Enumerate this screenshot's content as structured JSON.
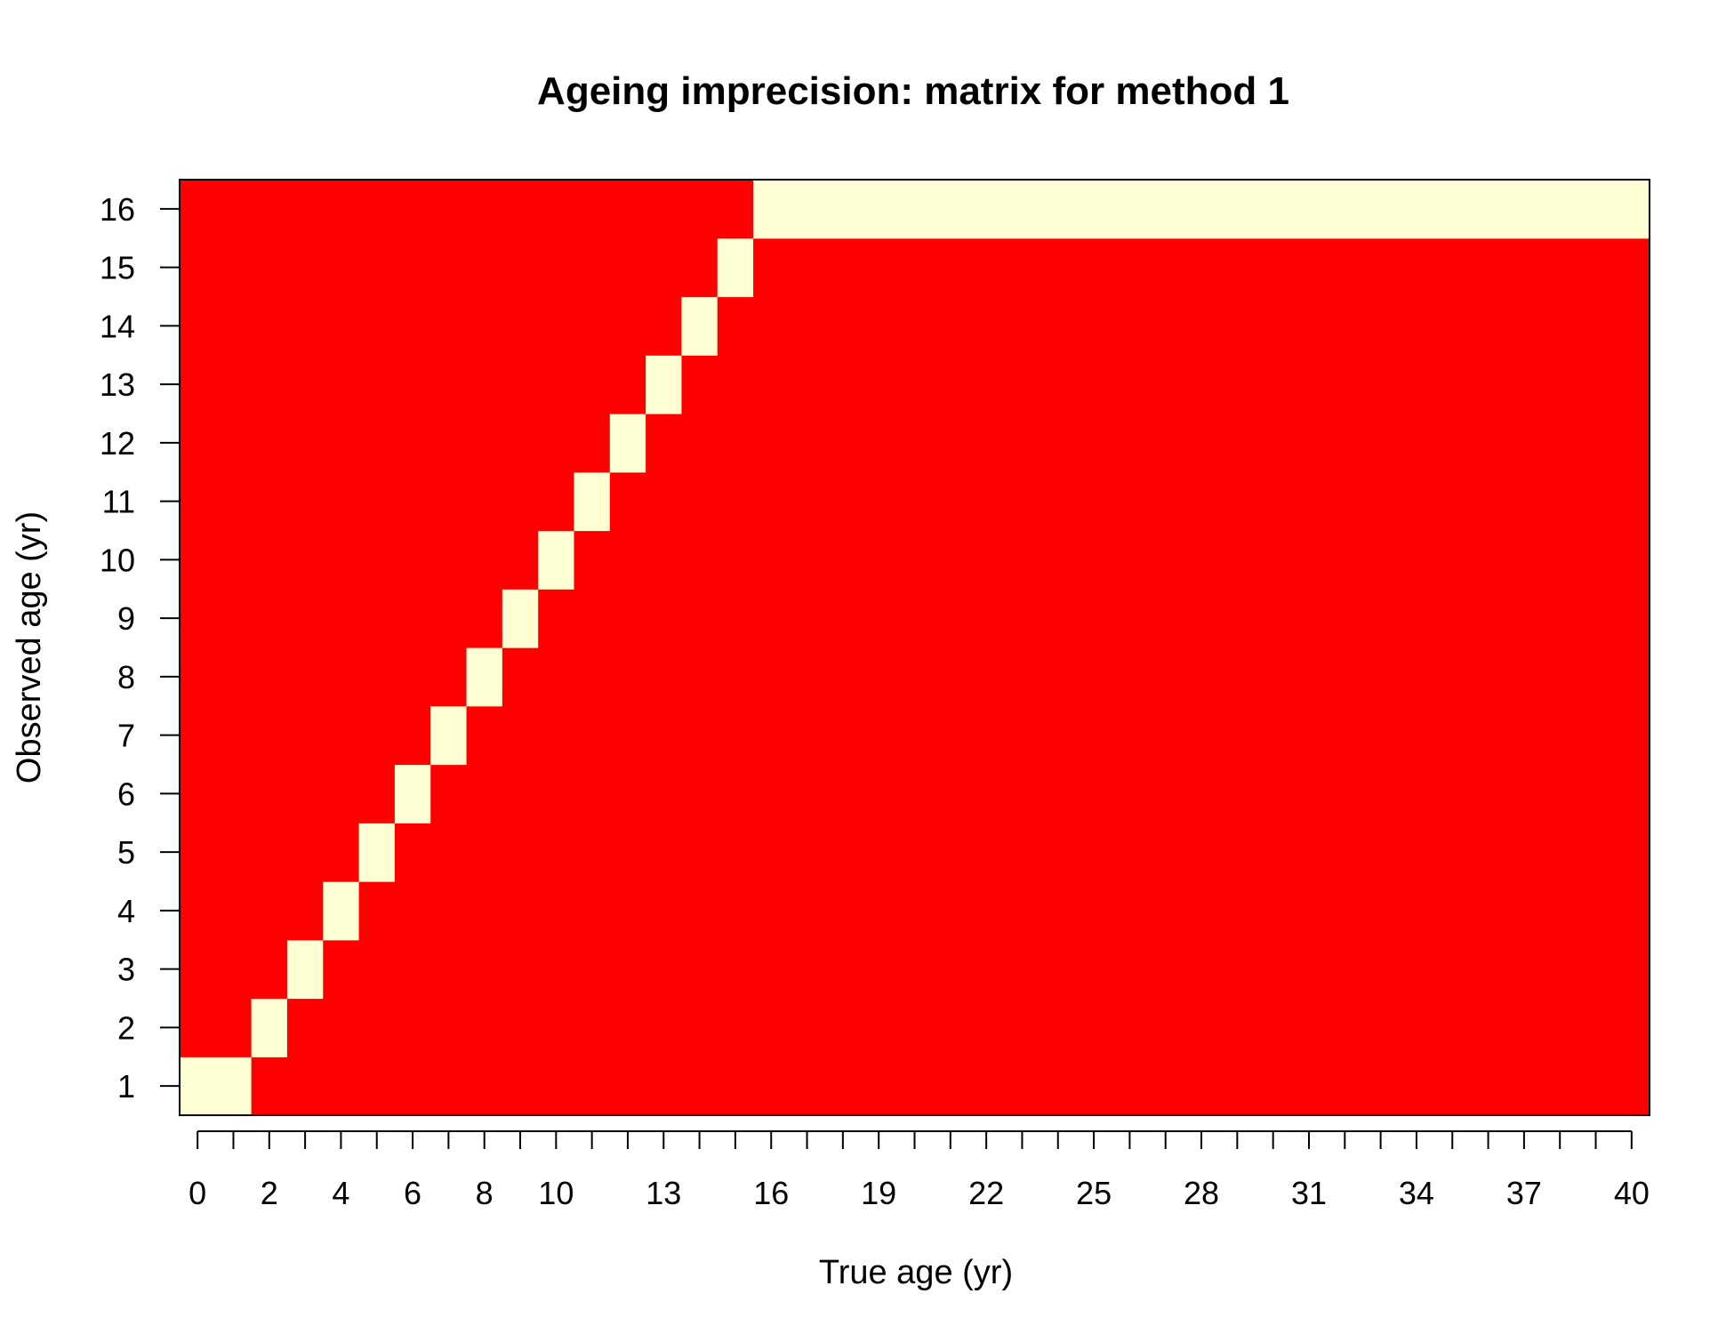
{
  "chart_data": {
    "type": "heatmap",
    "title": "Ageing imprecision: matrix for method 1",
    "xlabel": "True age (yr)",
    "ylabel": "Observed age (yr)",
    "x": [
      0,
      1,
      2,
      3,
      4,
      5,
      6,
      7,
      8,
      9,
      10,
      11,
      12,
      13,
      14,
      15,
      16,
      17,
      18,
      19,
      20,
      21,
      22,
      23,
      24,
      25,
      26,
      27,
      28,
      29,
      30,
      31,
      32,
      33,
      34,
      35,
      36,
      37,
      38,
      39,
      40
    ],
    "y": [
      1,
      2,
      3,
      4,
      5,
      6,
      7,
      8,
      9,
      10,
      11,
      12,
      13,
      14,
      15,
      16
    ],
    "x_tick_labels": [
      "0",
      "2",
      "4",
      "6",
      "8",
      "10",
      "13",
      "16",
      "19",
      "22",
      "25",
      "28",
      "31",
      "34",
      "37",
      "40"
    ],
    "y_tick_labels": [
      "1",
      "2",
      "3",
      "4",
      "5",
      "6",
      "7",
      "8",
      "9",
      "10",
      "11",
      "12",
      "13",
      "14",
      "15",
      "16"
    ],
    "observed_age_by_true_age": [
      1,
      1,
      2,
      3,
      4,
      5,
      6,
      7,
      8,
      9,
      10,
      11,
      12,
      13,
      14,
      15,
      16,
      16,
      16,
      16,
      16,
      16,
      16,
      16,
      16,
      16,
      16,
      16,
      16,
      16,
      16,
      16,
      16,
      16,
      16,
      16,
      16,
      16,
      16,
      16,
      16
    ],
    "cell_value_description": "probability of observed age given true age (1 on matched cells, 0 elsewhere)",
    "colors": {
      "high": "#FFFFD4",
      "low": "#FF0000"
    },
    "grid": false,
    "legend": "none"
  }
}
